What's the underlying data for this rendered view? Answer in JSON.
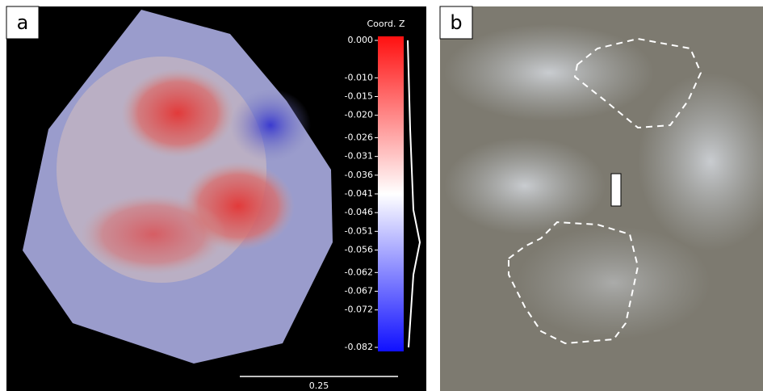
{
  "panel_a": {
    "label": "a",
    "colorbar": {
      "title": "Coord. Z",
      "lim": [
        -0.082,
        0
      ],
      "ticks": [
        {
          "value": 0,
          "label": "0.000"
        },
        {
          "value": -0.01,
          "label": "-0.010"
        },
        -0.015,
        {
          "value": -0.02,
          "label": "-0.020"
        },
        -0.026,
        -0.031,
        -0.036,
        -0.041,
        -0.046,
        -0.051,
        -0.056,
        -0.062,
        -0.067,
        -0.072,
        -0.082
      ]
    },
    "scale_bar": {
      "label": "0.25"
    }
  },
  "panel_b": {
    "label": "b"
  }
}
